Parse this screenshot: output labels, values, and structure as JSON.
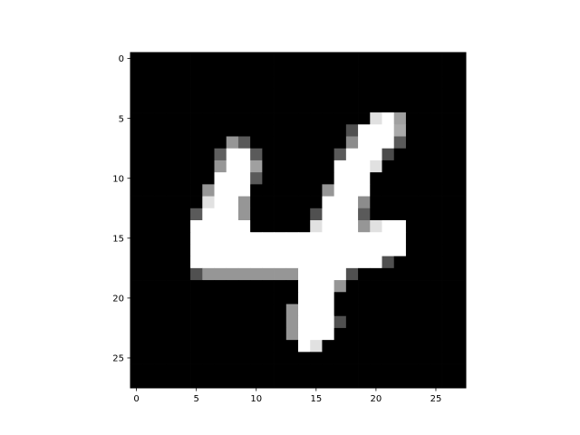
{
  "chart_data": {
    "type": "heatmap",
    "colormap": "gray",
    "title": "",
    "xlabel": "",
    "ylabel": "",
    "xlim": [
      -0.5,
      27.5
    ],
    "ylim": [
      27.5,
      -0.5
    ],
    "xticks": [
      0,
      5,
      10,
      15,
      20,
      25
    ],
    "yticks": [
      0,
      5,
      10,
      15,
      20,
      25
    ],
    "xtick_labels": [
      "0",
      "5",
      "10",
      "15",
      "20",
      "25"
    ],
    "ytick_labels": [
      "0",
      "5",
      "10",
      "15",
      "20",
      "25"
    ],
    "vmin": 0,
    "vmax": 255,
    "shape": [
      28,
      28
    ],
    "pixels": [
      [
        0,
        0,
        0,
        0,
        0,
        0,
        0,
        0,
        0,
        0,
        0,
        0,
        0,
        0,
        0,
        0,
        0,
        0,
        0,
        0,
        0,
        0,
        0,
        0,
        0,
        0,
        0,
        0
      ],
      [
        0,
        0,
        0,
        0,
        0,
        0,
        0,
        0,
        0,
        0,
        0,
        0,
        0,
        0,
        0,
        0,
        0,
        0,
        0,
        0,
        0,
        0,
        0,
        0,
        0,
        0,
        0,
        0
      ],
      [
        0,
        0,
        0,
        0,
        0,
        0,
        0,
        0,
        0,
        0,
        0,
        0,
        0,
        0,
        0,
        0,
        0,
        0,
        0,
        0,
        0,
        0,
        0,
        0,
        0,
        0,
        0,
        0
      ],
      [
        0,
        0,
        0,
        0,
        0,
        0,
        0,
        0,
        0,
        0,
        0,
        0,
        0,
        0,
        0,
        0,
        0,
        0,
        0,
        0,
        0,
        0,
        0,
        0,
        0,
        0,
        0,
        0
      ],
      [
        0,
        0,
        0,
        0,
        0,
        0,
        0,
        0,
        0,
        0,
        0,
        0,
        0,
        0,
        0,
        0,
        0,
        0,
        0,
        0,
        0,
        0,
        0,
        0,
        0,
        0,
        0,
        0
      ],
      [
        0,
        0,
        0,
        0,
        0,
        0,
        0,
        0,
        0,
        0,
        0,
        0,
        0,
        0,
        0,
        0,
        0,
        0,
        0,
        0,
        225,
        255,
        160,
        0,
        0,
        0,
        0,
        0
      ],
      [
        0,
        0,
        0,
        0,
        0,
        0,
        0,
        0,
        0,
        0,
        0,
        0,
        0,
        0,
        0,
        0,
        0,
        0,
        80,
        255,
        255,
        255,
        170,
        0,
        0,
        0,
        0,
        0
      ],
      [
        0,
        0,
        0,
        0,
        0,
        0,
        0,
        0,
        150,
        90,
        0,
        0,
        0,
        0,
        0,
        0,
        0,
        0,
        140,
        255,
        255,
        255,
        90,
        0,
        0,
        0,
        0,
        0
      ],
      [
        0,
        0,
        0,
        0,
        0,
        0,
        0,
        95,
        255,
        255,
        90,
        0,
        0,
        0,
        0,
        0,
        0,
        90,
        255,
        255,
        255,
        75,
        0,
        0,
        0,
        0,
        0,
        0
      ],
      [
        0,
        0,
        0,
        0,
        0,
        0,
        0,
        150,
        255,
        255,
        160,
        0,
        0,
        0,
        0,
        0,
        0,
        255,
        255,
        255,
        225,
        0,
        0,
        0,
        0,
        0,
        0,
        0
      ],
      [
        0,
        0,
        0,
        0,
        0,
        0,
        0,
        255,
        255,
        255,
        90,
        0,
        0,
        0,
        0,
        0,
        0,
        255,
        255,
        255,
        0,
        0,
        0,
        0,
        0,
        0,
        0,
        0
      ],
      [
        0,
        0,
        0,
        0,
        0,
        0,
        150,
        255,
        255,
        255,
        0,
        0,
        0,
        0,
        0,
        0,
        150,
        255,
        255,
        255,
        0,
        0,
        0,
        0,
        0,
        0,
        0,
        0
      ],
      [
        0,
        0,
        0,
        0,
        0,
        0,
        225,
        255,
        255,
        150,
        0,
        0,
        0,
        0,
        0,
        0,
        255,
        255,
        255,
        140,
        0,
        0,
        0,
        0,
        0,
        0,
        0,
        0
      ],
      [
        0,
        0,
        0,
        0,
        0,
        90,
        255,
        255,
        255,
        150,
        0,
        0,
        0,
        0,
        0,
        80,
        255,
        255,
        255,
        90,
        0,
        0,
        0,
        0,
        0,
        0,
        0,
        0
      ],
      [
        0,
        0,
        0,
        0,
        0,
        255,
        255,
        255,
        255,
        255,
        0,
        0,
        0,
        0,
        0,
        225,
        255,
        255,
        255,
        150,
        225,
        255,
        255,
        0,
        0,
        0,
        0,
        0
      ],
      [
        0,
        0,
        0,
        0,
        0,
        255,
        255,
        255,
        255,
        255,
        255,
        255,
        255,
        255,
        255,
        255,
        255,
        255,
        255,
        255,
        255,
        255,
        255,
        0,
        0,
        0,
        0,
        0
      ],
      [
        0,
        0,
        0,
        0,
        0,
        255,
        255,
        255,
        255,
        255,
        255,
        255,
        255,
        255,
        255,
        255,
        255,
        255,
        255,
        255,
        255,
        255,
        255,
        0,
        0,
        0,
        0,
        0
      ],
      [
        0,
        0,
        0,
        0,
        0,
        255,
        255,
        255,
        255,
        255,
        255,
        255,
        255,
        255,
        255,
        255,
        255,
        255,
        255,
        255,
        255,
        80,
        0,
        0,
        0,
        0,
        0,
        0
      ],
      [
        0,
        0,
        0,
        0,
        0,
        80,
        150,
        150,
        150,
        150,
        150,
        150,
        150,
        150,
        255,
        255,
        255,
        255,
        80,
        0,
        0,
        0,
        0,
        0,
        0,
        0,
        0,
        0
      ],
      [
        0,
        0,
        0,
        0,
        0,
        0,
        0,
        0,
        0,
        0,
        0,
        0,
        0,
        0,
        255,
        255,
        255,
        150,
        0,
        0,
        0,
        0,
        0,
        0,
        0,
        0,
        0,
        0
      ],
      [
        0,
        0,
        0,
        0,
        0,
        0,
        0,
        0,
        0,
        0,
        0,
        0,
        0,
        0,
        255,
        255,
        255,
        0,
        0,
        0,
        0,
        0,
        0,
        0,
        0,
        0,
        0,
        0
      ],
      [
        0,
        0,
        0,
        0,
        0,
        0,
        0,
        0,
        0,
        0,
        0,
        0,
        0,
        150,
        255,
        255,
        255,
        0,
        0,
        0,
        0,
        0,
        0,
        0,
        0,
        0,
        0,
        0
      ],
      [
        0,
        0,
        0,
        0,
        0,
        0,
        0,
        0,
        0,
        0,
        0,
        0,
        0,
        150,
        255,
        255,
        255,
        80,
        0,
        0,
        0,
        0,
        0,
        0,
        0,
        0,
        0,
        0
      ],
      [
        0,
        0,
        0,
        0,
        0,
        0,
        0,
        0,
        0,
        0,
        0,
        0,
        0,
        150,
        255,
        255,
        255,
        0,
        0,
        0,
        0,
        0,
        0,
        0,
        0,
        0,
        0,
        0
      ],
      [
        0,
        0,
        0,
        0,
        0,
        0,
        0,
        0,
        0,
        0,
        0,
        0,
        0,
        0,
        255,
        225,
        0,
        0,
        0,
        0,
        0,
        0,
        0,
        0,
        0,
        0,
        0,
        0
      ],
      [
        0,
        0,
        0,
        0,
        0,
        0,
        0,
        0,
        0,
        0,
        0,
        0,
        0,
        0,
        0,
        0,
        0,
        0,
        0,
        0,
        0,
        0,
        0,
        0,
        0,
        0,
        0,
        0
      ],
      [
        0,
        0,
        0,
        0,
        0,
        0,
        0,
        0,
        0,
        0,
        0,
        0,
        0,
        0,
        0,
        0,
        0,
        0,
        0,
        0,
        0,
        0,
        0,
        0,
        0,
        0,
        0,
        0
      ],
      [
        0,
        0,
        0,
        0,
        0,
        0,
        0,
        0,
        0,
        0,
        0,
        0,
        0,
        0,
        0,
        0,
        0,
        0,
        0,
        0,
        0,
        0,
        0,
        0,
        0,
        0,
        0,
        0
      ]
    ]
  }
}
